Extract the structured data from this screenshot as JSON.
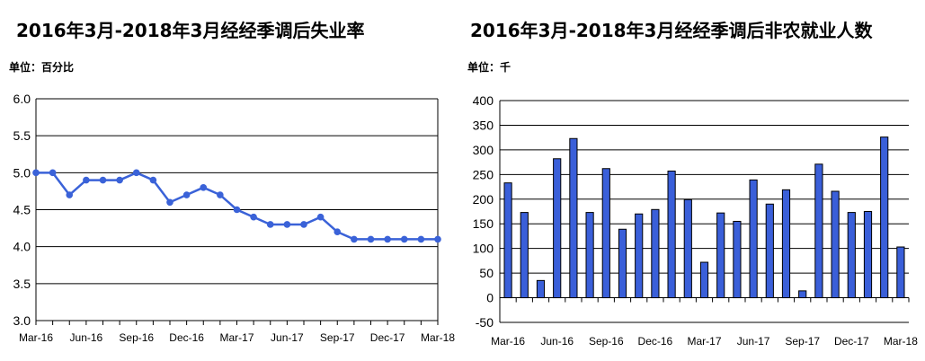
{
  "charts": {
    "left": {
      "title": "2016年3月-2018年3月经经季调后失业率",
      "unit": "单位：百分比"
    },
    "right": {
      "title": "2016年3月-2018年3月经经季调后非农就业人数",
      "unit": "单位：千"
    }
  },
  "chart_data": [
    {
      "type": "line",
      "title": "2016年3月-2018年3月经经季调后失业率",
      "ylabel": "单位：百分比",
      "x": [
        "Mar-16",
        "Apr-16",
        "May-16",
        "Jun-16",
        "Jul-16",
        "Aug-16",
        "Sep-16",
        "Oct-16",
        "Nov-16",
        "Dec-16",
        "Jan-17",
        "Feb-17",
        "Mar-17",
        "Apr-17",
        "May-17",
        "Jun-17",
        "Jul-17",
        "Aug-17",
        "Sep-17",
        "Oct-17",
        "Nov-17",
        "Dec-17",
        "Jan-18",
        "Feb-18",
        "Mar-18"
      ],
      "xticks": [
        "Mar-16",
        "Jun-16",
        "Sep-16",
        "Dec-16",
        "Mar-17",
        "Jun-17",
        "Sep-17",
        "Dec-17",
        "Mar-18"
      ],
      "values": [
        5.0,
        5.0,
        4.7,
        4.9,
        4.9,
        4.9,
        5.0,
        4.9,
        4.6,
        4.7,
        4.8,
        4.7,
        4.5,
        4.4,
        4.3,
        4.3,
        4.3,
        4.4,
        4.2,
        4.1,
        4.1,
        4.1,
        4.1,
        4.1,
        4.1
      ],
      "ylim": [
        3.0,
        6.0
      ],
      "yticks": [
        "3.0",
        "3.5",
        "4.0",
        "4.5",
        "5.0",
        "5.5",
        "6.0"
      ],
      "grid": true,
      "color": "#3a62d8"
    },
    {
      "type": "bar",
      "title": "2016年3月-2018年3月经经季调后非农就业人数",
      "ylabel": "单位：千",
      "categories": [
        "Mar-16",
        "Apr-16",
        "May-16",
        "Jun-16",
        "Jul-16",
        "Aug-16",
        "Sep-16",
        "Oct-16",
        "Nov-16",
        "Dec-16",
        "Jan-17",
        "Feb-17",
        "Mar-17",
        "Apr-17",
        "May-17",
        "Jun-17",
        "Jul-17",
        "Aug-17",
        "Sep-17",
        "Oct-17",
        "Nov-17",
        "Dec-17",
        "Jan-18",
        "Feb-18",
        "Mar-18"
      ],
      "xticks": [
        "Mar-16",
        "Jun-16",
        "Sep-16",
        "Dec-16",
        "Mar-17",
        "Jun-17",
        "Sep-17",
        "Dec-17",
        "Mar-18"
      ],
      "values": [
        233,
        173,
        35,
        282,
        323,
        173,
        262,
        139,
        170,
        179,
        257,
        199,
        72,
        172,
        155,
        239,
        190,
        219,
        14,
        271,
        216,
        173,
        175,
        326,
        103
      ],
      "ylim": [
        -50,
        400
      ],
      "yticks": [
        "-50",
        "0",
        "50",
        "100",
        "150",
        "200",
        "250",
        "300",
        "350",
        "400"
      ],
      "grid": true,
      "color": "#3a5fd9"
    }
  ]
}
